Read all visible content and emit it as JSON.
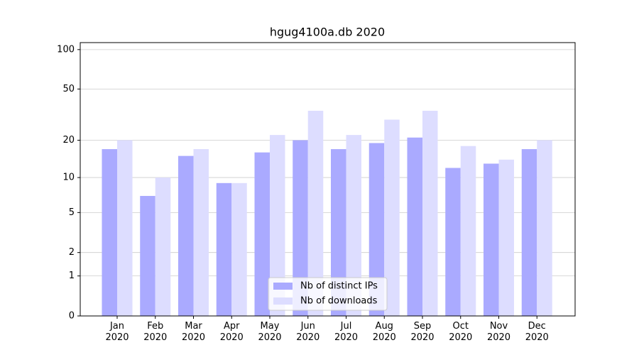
{
  "chart_data": {
    "type": "bar",
    "title": "hgug4100a.db 2020",
    "categories": [
      "Jan\n2020",
      "Feb\n2020",
      "Mar\n2020",
      "Apr\n2020",
      "May\n2020",
      "Jun\n2020",
      "Jul\n2020",
      "Aug\n2020",
      "Sep\n2020",
      "Oct\n2020",
      "Nov\n2020",
      "Dec\n2020"
    ],
    "series": [
      {
        "name": "Nb of distinct IPs",
        "color": "#aaaaff",
        "values": [
          17,
          7,
          15,
          9,
          16,
          20,
          17,
          19,
          21,
          12,
          13,
          17
        ]
      },
      {
        "name": "Nb of downloads",
        "color": "#ddddff",
        "values": [
          20,
          10,
          17,
          9,
          22,
          34,
          22,
          29,
          34,
          18,
          14,
          20
        ]
      }
    ],
    "yscale": "log1p",
    "ylim": [
      0,
      113
    ],
    "yticks": [
      0,
      1,
      2,
      5,
      10,
      20,
      50,
      100
    ],
    "grid": true,
    "legend": "lower center"
  }
}
